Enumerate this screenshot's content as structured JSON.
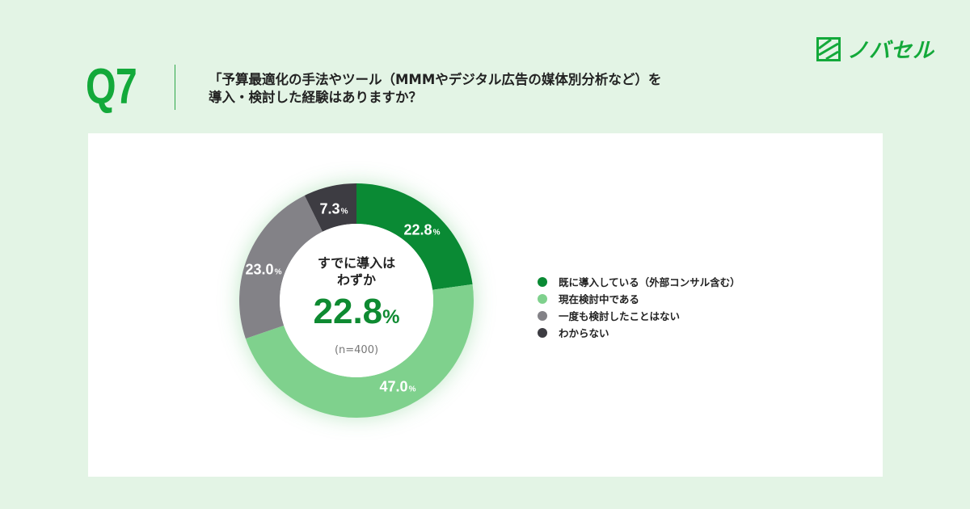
{
  "brand": {
    "logo_icon": "nobaseru-logo-icon",
    "name": "ノバセル",
    "color": "#13a93a"
  },
  "question": {
    "number": "Q7",
    "text_line1": "「予算最適化の手法やツール（MMMやデジタル広告の媒体別分析など）を",
    "text_line2": "導入・検討した経験はありますか？"
  },
  "center": {
    "headline_line1": "すでに導入は",
    "headline_line2": "わずか",
    "value": "22.8",
    "unit": "%",
    "sample": "(n=400)"
  },
  "segments": [
    {
      "label": "22.8",
      "unit": "%",
      "color": "#0a8a34"
    },
    {
      "label": "47.0",
      "unit": "%",
      "color": "#7fd18d"
    },
    {
      "label": "23.0",
      "unit": "%",
      "color": "#838287"
    },
    {
      "label": "7.3",
      "unit": "%",
      "color": "#3d3c42"
    }
  ],
  "legend": [
    {
      "label": "既に導入している（外部コンサル含む）",
      "color": "#0a8a34"
    },
    {
      "label": "現在検討中である",
      "color": "#7fd18d"
    },
    {
      "label": "一度も検討したことはない",
      "color": "#838287"
    },
    {
      "label": "わからない",
      "color": "#3d3c42"
    }
  ],
  "chart_data": {
    "type": "pie",
    "subtype": "donut",
    "title": "「予算最適化の手法やツール（MMMやデジタル広告の媒体別分析など）を導入・検討した経験はありますか？",
    "categories": [
      "既に導入している（外部コンサル含む）",
      "現在検討中である",
      "一度も検討したことはない",
      "わからない"
    ],
    "values": [
      22.8,
      47.0,
      23.0,
      7.3
    ],
    "unit": "%",
    "colors": [
      "#0a8a34",
      "#7fd18d",
      "#838287",
      "#3d3c42"
    ],
    "center_annotation": "すでに導入はわずか 22.8%",
    "sample_size": "n=400",
    "legend_position": "right",
    "start_angle": "12 o'clock, clockwise"
  }
}
